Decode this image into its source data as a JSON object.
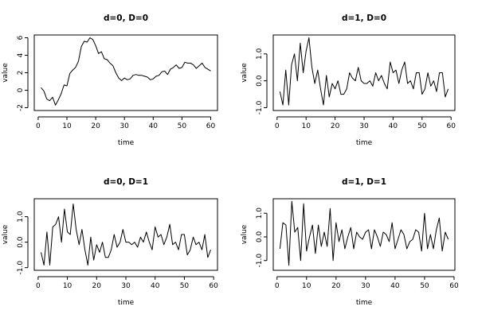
{
  "chart_data": [
    {
      "type": "line",
      "title": "d=0, D=0",
      "xlabel": "time",
      "ylabel": "value",
      "xlim": [
        1,
        60
      ],
      "ylim": [
        -2,
        6
      ],
      "xticks": [
        0,
        10,
        20,
        30,
        40,
        50,
        60
      ],
      "yticks": [
        -2,
        0,
        2,
        4,
        6
      ],
      "grid": false,
      "series": [
        {
          "x": [
            1,
            2,
            3,
            4,
            5,
            6,
            7,
            8,
            9,
            10,
            11,
            12,
            13,
            14,
            15,
            16,
            17,
            18,
            19,
            20,
            21,
            22,
            23,
            24,
            25,
            26,
            27,
            28,
            29,
            30,
            31,
            32,
            33,
            34,
            35,
            36,
            37,
            38,
            39,
            40,
            41,
            42,
            43,
            44,
            45,
            46,
            47,
            48,
            49,
            50,
            51,
            52,
            53,
            54,
            55,
            56,
            57,
            58,
            59,
            60
          ],
          "values": [
            0.3,
            -0.1,
            -1.0,
            -1.2,
            -0.8,
            -1.7,
            -1.1,
            -0.4,
            0.6,
            0.5,
            1.9,
            2.3,
            2.6,
            3.3,
            5.0,
            5.6,
            5.5,
            6.0,
            5.8,
            5.1,
            4.2,
            4.4,
            3.6,
            3.5,
            3.1,
            2.8,
            2.0,
            1.4,
            1.1,
            1.4,
            1.2,
            1.3,
            1.7,
            1.8,
            1.7,
            1.7,
            1.6,
            1.5,
            1.2,
            1.3,
            1.6,
            1.7,
            2.1,
            2.2,
            1.8,
            2.4,
            2.6,
            2.9,
            2.5,
            2.6,
            3.2,
            3.1,
            3.1,
            2.9,
            2.5,
            2.8,
            3.1,
            2.6,
            2.4,
            2.2
          ]
        }
      ]
    },
    {
      "type": "line",
      "title": "d=1, D=0",
      "xlabel": "time",
      "ylabel": "value",
      "xlim": [
        1,
        59
      ],
      "ylim": [
        -1.0,
        1.6
      ],
      "xticks": [
        0,
        10,
        20,
        30,
        40,
        50,
        60
      ],
      "yticks": [
        -1.0,
        0.0,
        1.0
      ],
      "grid": false,
      "series": [
        {
          "x": [
            1,
            2,
            3,
            4,
            5,
            6,
            7,
            8,
            9,
            10,
            11,
            12,
            13,
            14,
            15,
            16,
            17,
            18,
            19,
            20,
            21,
            22,
            23,
            24,
            25,
            26,
            27,
            28,
            29,
            30,
            31,
            32,
            33,
            34,
            35,
            36,
            37,
            38,
            39,
            40,
            41,
            42,
            43,
            44,
            45,
            46,
            47,
            48,
            49,
            50,
            51,
            52,
            53,
            54,
            55,
            56,
            57,
            58,
            59
          ],
          "values": [
            -0.4,
            -0.9,
            0.4,
            -0.9,
            0.6,
            1.0,
            0.0,
            1.4,
            0.3,
            1.1,
            1.6,
            0.5,
            -0.1,
            0.4,
            -0.3,
            -0.9,
            0.2,
            -0.6,
            -0.1,
            -0.3,
            0.0,
            -0.5,
            -0.5,
            -0.3,
            0.3,
            0.1,
            0.0,
            0.5,
            0.0,
            -0.1,
            -0.1,
            0.0,
            -0.2,
            0.3,
            0.0,
            0.2,
            -0.1,
            -0.3,
            0.7,
            0.3,
            0.4,
            -0.1,
            0.4,
            0.7,
            -0.1,
            0.0,
            -0.3,
            0.3,
            0.3,
            -0.5,
            -0.3,
            0.3,
            -0.2,
            0.0,
            -0.4,
            0.3,
            0.3,
            -0.6,
            -0.3
          ]
        }
      ]
    },
    {
      "type": "line",
      "title": "d=0, D=1",
      "xlabel": "time",
      "ylabel": "value",
      "xlim": [
        1,
        59
      ],
      "ylim": [
        -1.0,
        1.6
      ],
      "xticks": [
        0,
        10,
        20,
        30,
        40,
        50,
        60
      ],
      "yticks": [
        -1.0,
        0.0,
        1.0
      ],
      "grid": false,
      "series": [
        {
          "x": [
            1,
            2,
            3,
            4,
            5,
            6,
            7,
            8,
            9,
            10,
            11,
            12,
            13,
            14,
            15,
            16,
            17,
            18,
            19,
            20,
            21,
            22,
            23,
            24,
            25,
            26,
            27,
            28,
            29,
            30,
            31,
            32,
            33,
            34,
            35,
            36,
            37,
            38,
            39,
            40,
            41,
            42,
            43,
            44,
            45,
            46,
            47,
            48,
            49,
            50,
            51,
            52,
            53,
            54,
            55,
            56,
            57,
            58,
            59
          ],
          "values": [
            -0.4,
            -0.9,
            0.4,
            -0.9,
            0.6,
            0.7,
            1.0,
            0.0,
            1.3,
            0.4,
            0.3,
            1.5,
            0.5,
            -0.1,
            0.5,
            -0.3,
            -0.9,
            0.2,
            -0.7,
            -0.1,
            -0.4,
            0.0,
            -0.6,
            -0.6,
            -0.3,
            0.3,
            -0.2,
            0.0,
            0.5,
            0.0,
            0.0,
            -0.1,
            0.0,
            -0.2,
            0.2,
            0.0,
            0.4,
            0.0,
            -0.3,
            0.6,
            0.2,
            0.3,
            -0.1,
            0.2,
            0.7,
            -0.1,
            0.0,
            -0.3,
            0.3,
            0.3,
            -0.5,
            -0.3,
            0.2,
            -0.1,
            0.0,
            -0.3,
            0.3,
            -0.6,
            -0.3
          ]
        }
      ]
    },
    {
      "type": "line",
      "title": "d=1, D=1",
      "xlabel": "time",
      "ylabel": "value",
      "xlim": [
        1,
        58
      ],
      "ylim": [
        -1.3,
        1.5
      ],
      "xticks": [
        0,
        10,
        20,
        30,
        40,
        50,
        60
      ],
      "yticks": [
        -1.0,
        0.0,
        1.0
      ],
      "grid": false,
      "series": [
        {
          "x": [
            1,
            2,
            3,
            4,
            5,
            6,
            7,
            8,
            9,
            10,
            11,
            12,
            13,
            14,
            15,
            16,
            17,
            18,
            19,
            20,
            21,
            22,
            23,
            24,
            25,
            26,
            27,
            28,
            29,
            30,
            31,
            32,
            33,
            34,
            35,
            36,
            37,
            38,
            39,
            40,
            41,
            42,
            43,
            44,
            45,
            46,
            47,
            48,
            49,
            50,
            51,
            52,
            53,
            54,
            55,
            56,
            57,
            58
          ],
          "values": [
            -0.5,
            0.6,
            0.5,
            -1.2,
            1.5,
            0.2,
            0.4,
            -1.0,
            1.4,
            -0.6,
            0.0,
            0.5,
            -0.7,
            0.5,
            -0.4,
            0.2,
            -0.4,
            1.2,
            -1.0,
            0.6,
            -0.2,
            0.3,
            -0.5,
            0.0,
            0.4,
            -0.5,
            0.2,
            0.0,
            -0.1,
            0.2,
            0.3,
            -0.5,
            0.3,
            0.0,
            -0.4,
            0.2,
            0.1,
            -0.2,
            0.6,
            -0.5,
            -0.1,
            0.3,
            0.1,
            -0.5,
            -0.2,
            -0.1,
            0.3,
            0.2,
            -0.6,
            1.0,
            -0.5,
            0.1,
            -0.5,
            0.3,
            0.8,
            -0.6,
            0.2,
            -0.1
          ]
        }
      ]
    }
  ]
}
